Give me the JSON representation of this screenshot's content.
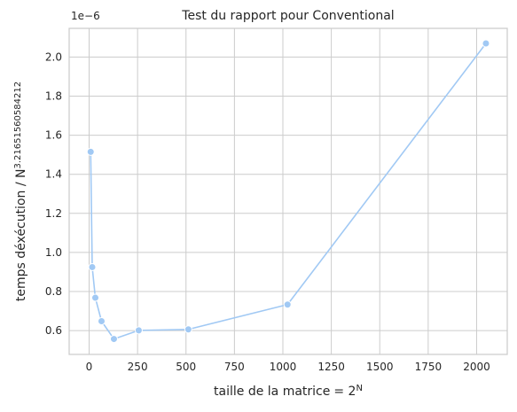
{
  "chart_data": {
    "type": "line",
    "title": "Test du rapport pour Conventional",
    "xlabel_main": "taille de la matrice",
    "xlabel_eq": "= 2",
    "xlabel_sup": "N",
    "ylabel_main": "temps déxécution / N",
    "ylabel_sup": "3.21651560584212",
    "y_offset_label": "1e−6",
    "x": [
      8,
      16,
      32,
      64,
      128,
      256,
      512,
      1024,
      2048
    ],
    "series": [
      {
        "name": "",
        "values": [
          1.515,
          0.925,
          0.768,
          0.648,
          0.557,
          0.601,
          0.606,
          0.733,
          2.07
        ],
        "color": "#a1c9f4"
      }
    ],
    "xlim": [
      -103,
      2158
    ],
    "ylim": [
      0.478,
      2.147
    ],
    "x_ticks": [
      0,
      250,
      500,
      750,
      1000,
      1250,
      1500,
      1750,
      2000
    ],
    "y_ticks": [
      0.6,
      0.8,
      1.0,
      1.2,
      1.4,
      1.6,
      1.8,
      2.0
    ],
    "x_tick_labels": [
      "0",
      "250",
      "500",
      "750",
      "1000",
      "1250",
      "1500",
      "1750",
      "2000"
    ],
    "y_tick_labels": [
      "0.6",
      "0.8",
      "1.0",
      "1.2",
      "1.4",
      "1.6",
      "1.8",
      "2.0"
    ],
    "grid": true,
    "legend": "none"
  }
}
